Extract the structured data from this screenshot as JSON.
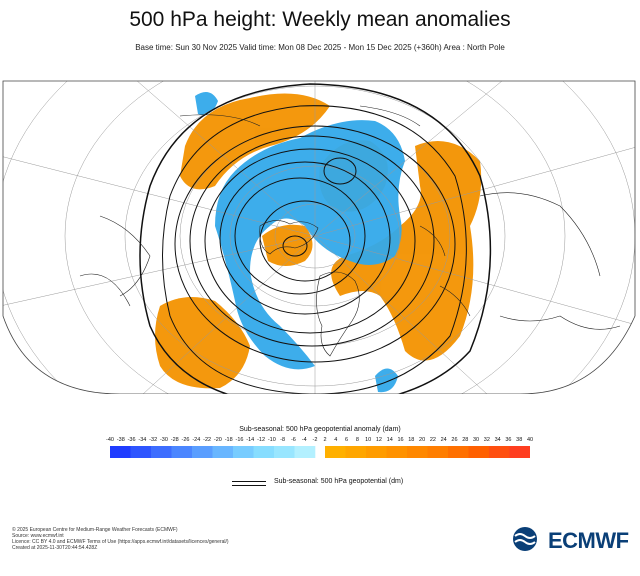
{
  "title": "500 hPa height: Weekly mean anomalies",
  "subtitle": "Base time: Sun 30 Nov 2025 Valid time: Mon 08 Dec 2025 - Mon 15 Dec 2025 (+360h) Area : North Pole",
  "legend": {
    "title": "Sub-seasonal: 500 hPa geopotential anomaly (dam)",
    "ticks": [
      "-40",
      "-38",
      "-36",
      "-34",
      "-32",
      "-30",
      "-28",
      "-26",
      "-24",
      "-22",
      "-20",
      "-18",
      "-16",
      "-14",
      "-12",
      "-10",
      "-8",
      "-6",
      "-4",
      "-2",
      "2",
      "4",
      "6",
      "8",
      "10",
      "12",
      "14",
      "16",
      "18",
      "20",
      "22",
      "24",
      "26",
      "28",
      "30",
      "32",
      "34",
      "36",
      "38",
      "40"
    ],
    "negative_colors": [
      "#1f3cff",
      "#2e55ff",
      "#3d6dff",
      "#4b86ff",
      "#5a9eff",
      "#69b6ff",
      "#78ccff",
      "#87ddff",
      "#99e6ff",
      "#b3f0ff"
    ],
    "positive_colors": [
      "#ffb000",
      "#ffa600",
      "#ff9c00",
      "#ff9200",
      "#ff8800",
      "#ff7e00",
      "#ff7000",
      "#ff6000",
      "#ff4f10",
      "#ff3e20"
    ],
    "contour_label": "Sub-seasonal: 500 hPa geopotential (dm)"
  },
  "footer": {
    "line1": "© 2025 European Centre for Medium-Range Weather Forecasts (ECMWF)",
    "line2": "Source: www.ecmwf.int",
    "line3": "Licence: CC BY 4.0 and ECMWF Terms of Use (https://apps.ecmwf.int/datasets/licences/general/)",
    "line4": "Created at 2025-11-30T20:44:54.428Z"
  },
  "logo_text": "ECMWF",
  "colors": {
    "positive": "#f39200",
    "negative": "#33a9ea",
    "brand": "#0a3f77"
  }
}
